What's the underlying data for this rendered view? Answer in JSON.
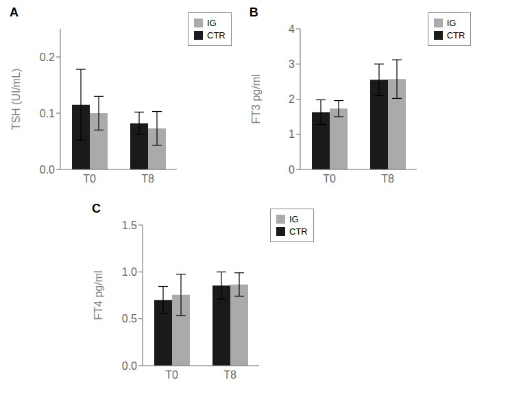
{
  "chart_data": [
    {
      "type": "bar",
      "title": "A",
      "ylabel": "TSH (UI/mL)",
      "categories": [
        "T0",
        "T8"
      ],
      "series": [
        {
          "name": "CTR",
          "color": "#1a1a1a",
          "values": [
            0.115,
            0.082
          ],
          "errors": [
            0.063,
            0.02
          ]
        },
        {
          "name": "IG",
          "color": "#aaaaaa",
          "values": [
            0.1,
            0.073
          ],
          "errors": [
            0.03,
            0.03
          ]
        }
      ],
      "ylim": [
        0,
        0.25
      ],
      "yticks": [
        {
          "value": 0,
          "label": "0.0"
        },
        0.1,
        0.2
      ],
      "grid": false,
      "legend": "right"
    },
    {
      "type": "bar",
      "title": "B",
      "ylabel": "FT3 pg/ml",
      "categories": [
        "T0",
        "T8"
      ],
      "series": [
        {
          "name": "CTR",
          "color": "#1a1a1a",
          "values": [
            1.63,
            2.55
          ],
          "errors": [
            0.35,
            0.45
          ]
        },
        {
          "name": "IG",
          "color": "#aaaaaa",
          "values": [
            1.73,
            2.57
          ],
          "errors": [
            0.23,
            0.55
          ]
        }
      ],
      "ylim": [
        0,
        4
      ],
      "yticks": [
        0,
        1,
        2,
        3,
        4
      ],
      "grid": false,
      "legend": "right"
    },
    {
      "type": "bar",
      "title": "C",
      "ylabel": "FT4 pg/ml",
      "categories": [
        "T0",
        "T8"
      ],
      "series": [
        {
          "name": "CTR",
          "color": "#1a1a1a",
          "values": [
            0.7,
            0.855
          ],
          "errors": [
            0.145,
            0.145
          ]
        },
        {
          "name": "IG",
          "color": "#aaaaaa",
          "values": [
            0.755,
            0.865
          ],
          "errors": [
            0.22,
            0.125
          ]
        }
      ],
      "ylim": [
        0,
        1.5
      ],
      "yticks": [
        {
          "value": 0,
          "label": "0.0"
        },
        0.5,
        {
          "value": 1,
          "label": "1.0"
        },
        1.5
      ],
      "grid": false,
      "legend": "right"
    }
  ]
}
